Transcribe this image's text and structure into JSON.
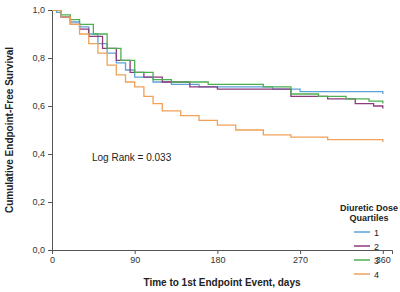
{
  "chart_data": {
    "type": "step",
    "x_label": "Time to 1st Endpoint Event, days",
    "y_label": "Cumulative Endpoint-Free Survival",
    "annotations": [
      {
        "text": "Log Rank = 0.033"
      }
    ],
    "legend_title": "Diuretic Dose Quartiles",
    "legend": "bottom-right",
    "grid": false,
    "xlim": [
      0,
      370
    ],
    "xticks": [
      0,
      90,
      180,
      270,
      360
    ],
    "ylim": [
      0,
      1
    ],
    "yticks": [
      {
        "value": 0,
        "label": "0,0"
      },
      {
        "value": 0.2,
        "label": "0,2"
      },
      {
        "value": 0.4,
        "label": "0,4"
      },
      {
        "value": 0.6,
        "label": "0,6"
      },
      {
        "value": 0.8,
        "label": "0,8"
      },
      {
        "value": 1,
        "label": "1,0"
      }
    ],
    "series": [
      {
        "name": "1",
        "color": "#5ba3d6",
        "x": [
          0,
          5,
          10,
          20,
          30,
          40,
          50,
          60,
          70,
          80,
          90,
          110,
          130,
          160,
          200,
          240,
          270,
          300,
          330,
          360
        ],
        "values": [
          1.0,
          0.99,
          0.97,
          0.95,
          0.93,
          0.9,
          0.86,
          0.82,
          0.78,
          0.75,
          0.72,
          0.7,
          0.69,
          0.68,
          0.68,
          0.67,
          0.66,
          0.66,
          0.66,
          0.65
        ]
      },
      {
        "name": "2",
        "color": "#8e3a7e",
        "x": [
          0,
          10,
          20,
          30,
          40,
          55,
          70,
          85,
          100,
          120,
          150,
          180,
          220,
          260,
          300,
          330,
          350,
          360
        ],
        "values": [
          1.0,
          0.97,
          0.94,
          0.92,
          0.89,
          0.84,
          0.79,
          0.74,
          0.72,
          0.7,
          0.68,
          0.67,
          0.67,
          0.64,
          0.63,
          0.61,
          0.6,
          0.59
        ]
      },
      {
        "name": "3",
        "color": "#4caf50",
        "x": [
          0,
          10,
          20,
          30,
          45,
          60,
          75,
          90,
          110,
          130,
          150,
          170,
          200,
          230,
          260,
          290,
          320,
          345,
          360
        ],
        "values": [
          1.0,
          0.98,
          0.96,
          0.94,
          0.9,
          0.84,
          0.79,
          0.74,
          0.71,
          0.7,
          0.7,
          0.69,
          0.69,
          0.68,
          0.65,
          0.64,
          0.63,
          0.62,
          0.61
        ]
      },
      {
        "name": "4",
        "color": "#f0a05a",
        "x": [
          0,
          10,
          20,
          30,
          40,
          50,
          60,
          70,
          80,
          90,
          100,
          110,
          120,
          140,
          160,
          180,
          200,
          230,
          260,
          300,
          360
        ],
        "values": [
          1.0,
          0.97,
          0.94,
          0.9,
          0.86,
          0.82,
          0.77,
          0.73,
          0.7,
          0.68,
          0.64,
          0.61,
          0.58,
          0.56,
          0.54,
          0.52,
          0.5,
          0.48,
          0.47,
          0.46,
          0.45
        ]
      }
    ]
  }
}
